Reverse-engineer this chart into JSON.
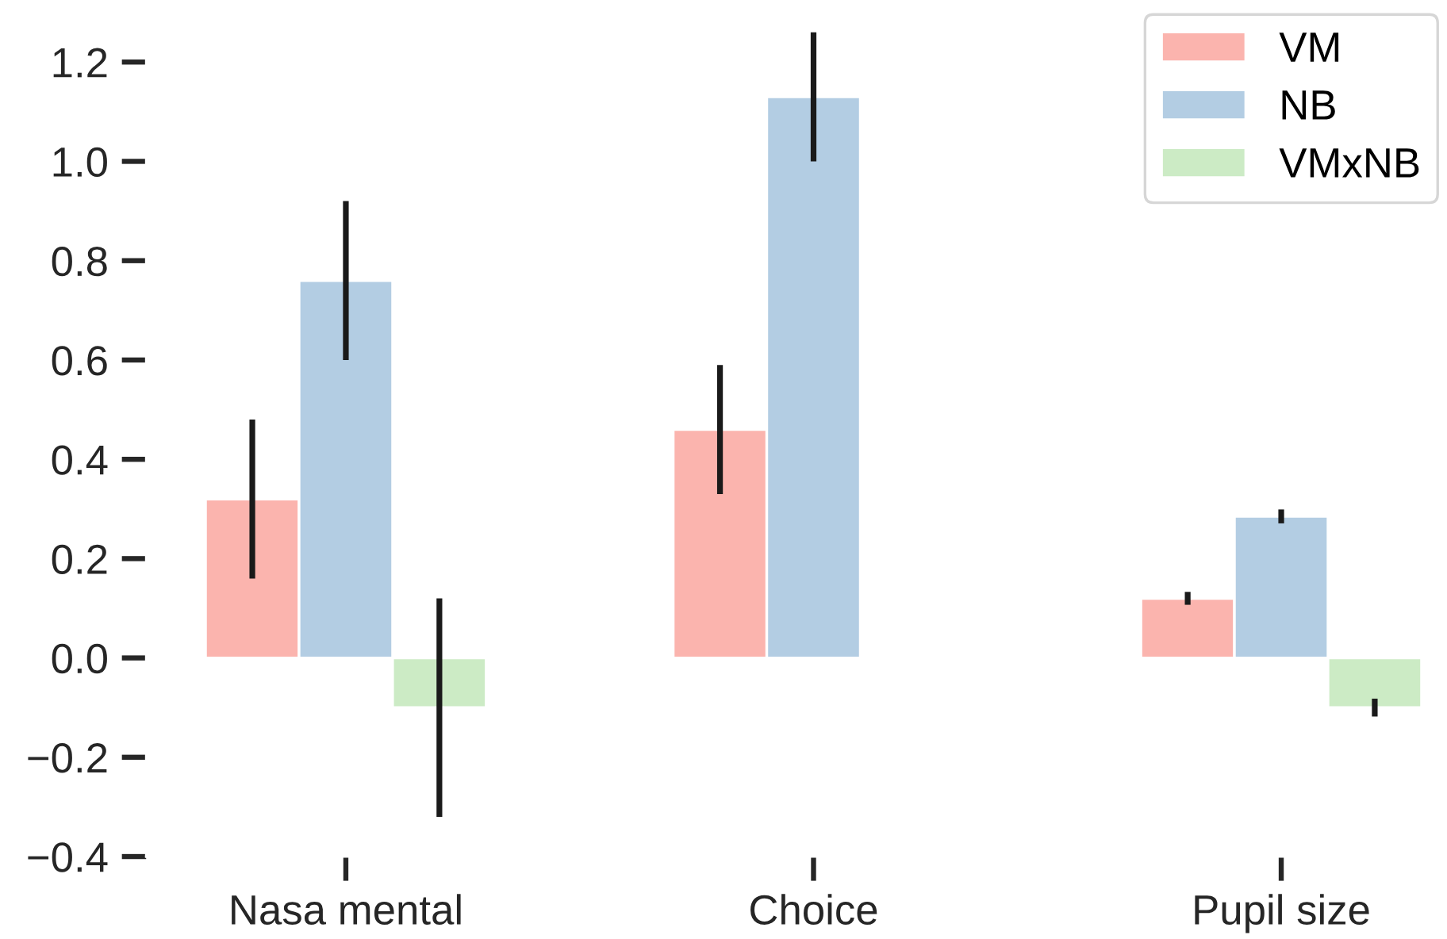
{
  "chart_data": {
    "type": "bar",
    "categories": [
      "Nasa mental",
      "Choice",
      "Pupil size"
    ],
    "series": [
      {
        "name": "VM",
        "color": "#fbb4ae",
        "values": [
          0.32,
          0.46,
          0.12
        ],
        "errors": [
          0.16,
          0.13,
          0.013
        ]
      },
      {
        "name": "NB",
        "color": "#b3cde3",
        "values": [
          0.76,
          1.13,
          0.285
        ],
        "errors": [
          0.16,
          0.13,
          0.014
        ]
      },
      {
        "name": "VMxNB",
        "color": "#ccebc5",
        "values": [
          -0.1,
          null,
          -0.1
        ],
        "errors": [
          0.22,
          null,
          0.018
        ]
      }
    ],
    "ylim": [
      -0.4,
      1.3
    ],
    "yticks": [
      {
        "value": -0.4,
        "label": "−0.4"
      },
      {
        "value": -0.2,
        "label": "−0.2"
      },
      {
        "value": 0,
        "label": "0.0"
      },
      {
        "value": 0.2,
        "label": "0.2"
      },
      {
        "value": 0.4,
        "label": "0.4"
      },
      {
        "value": 0.6,
        "label": "0.6"
      },
      {
        "value": 0.8,
        "label": "0.8"
      },
      {
        "value": 1.0,
        "label": "1.0"
      },
      {
        "value": 1.2,
        "label": "1.2"
      }
    ],
    "legend": "top right",
    "grid": false
  }
}
